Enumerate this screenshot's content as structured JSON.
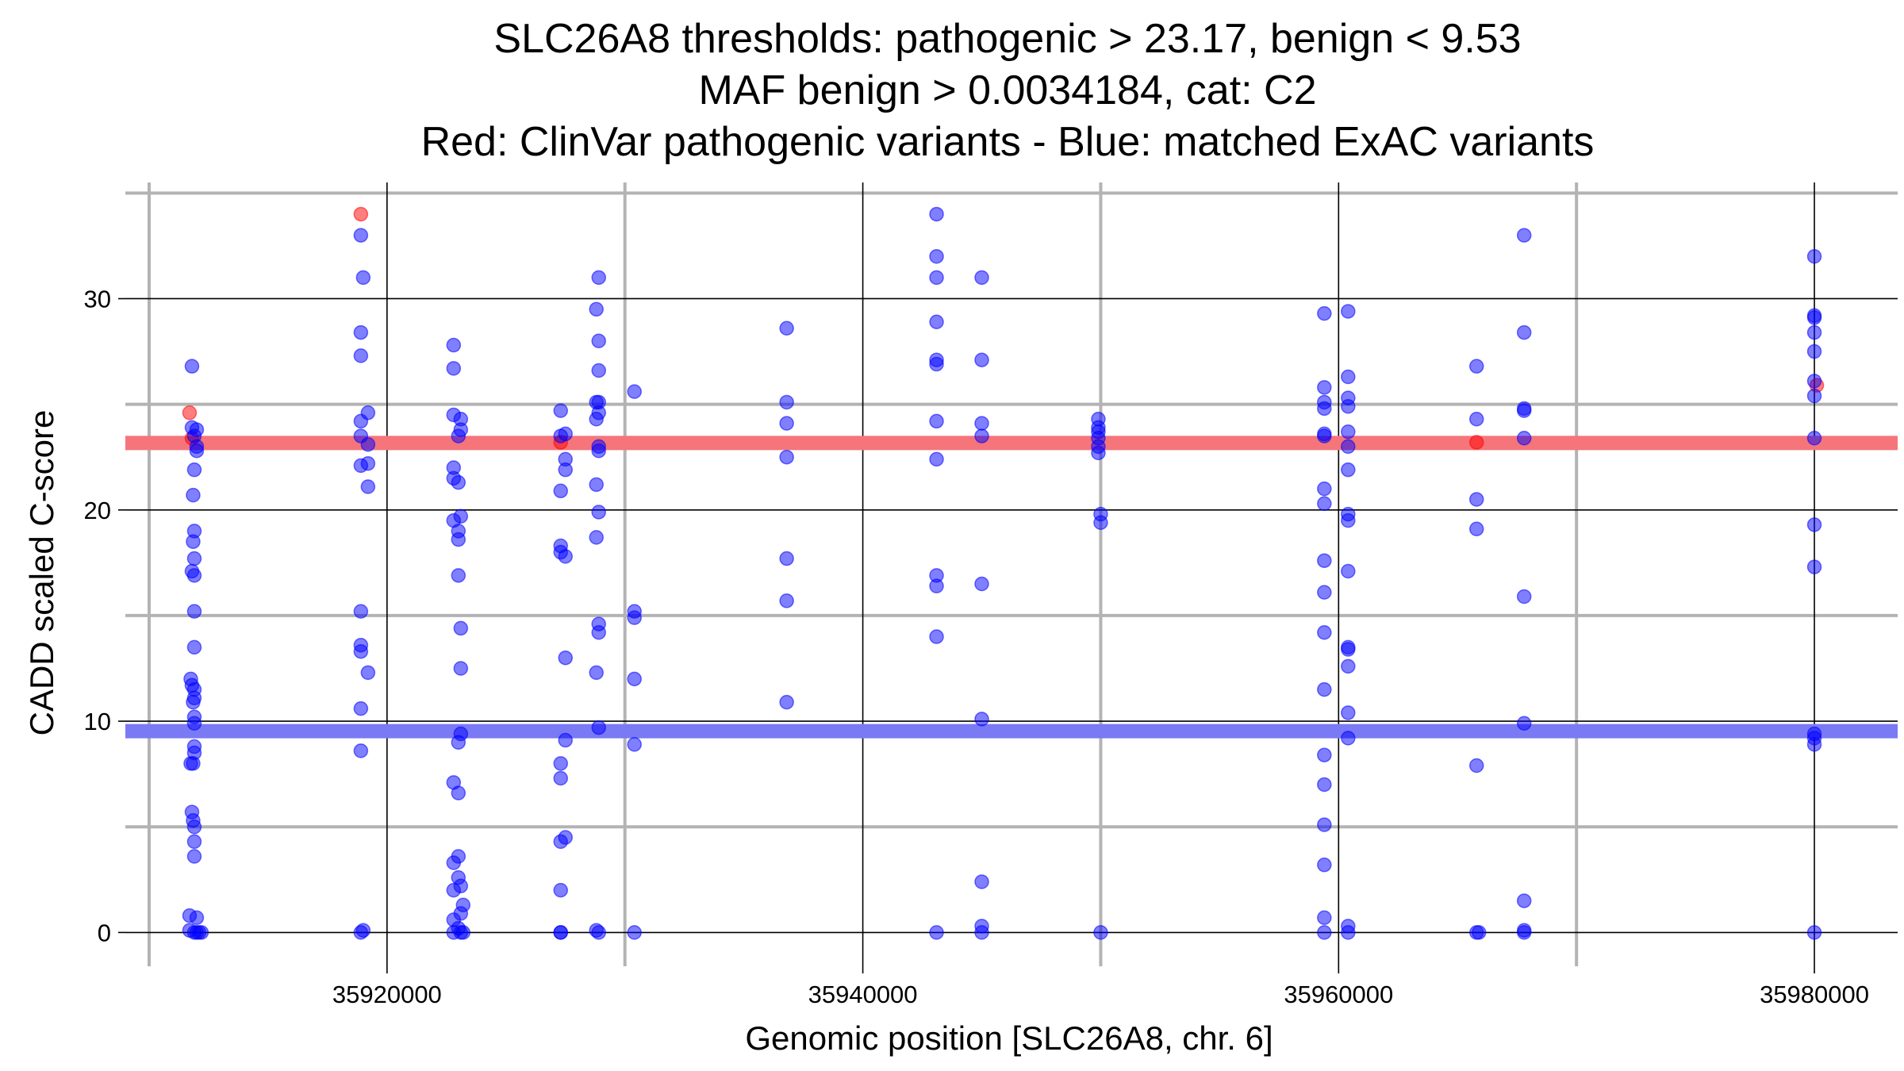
{
  "chart_data": {
    "type": "scatter",
    "title": [
      "SLC26A8 thresholds: pathogenic > 23.17, benign < 9.53",
      "MAF benign > 0.0034184, cat: C2",
      "Red: ClinVar pathogenic variants - Blue: matched ExAC variants"
    ],
    "xlabel": "Genomic position [SLC26A8, chr. 6]",
    "ylabel": "CADD scaled C-score",
    "xlim": [
      35909000,
      35983500
    ],
    "ylim": [
      -1.6,
      35.5
    ],
    "x_ticks": [
      35920000,
      35940000,
      35960000,
      35980000
    ],
    "x_tick_labels": [
      "35920000",
      "35940000",
      "35960000",
      "35980000"
    ],
    "y_ticks": [
      0,
      10,
      20,
      30
    ],
    "y_tick_labels": [
      "0",
      "10",
      "20",
      "30"
    ],
    "x_minor_grid": [
      35910000,
      35930000,
      35950000,
      35970000
    ],
    "y_minor_grid": [
      5,
      15,
      25,
      35
    ],
    "grid": true,
    "thresholds": [
      {
        "name": "pathogenic",
        "y": 23.17,
        "color": "#f5757a"
      },
      {
        "name": "benign",
        "y": 9.53,
        "color": "#7a7af5"
      }
    ],
    "series": [
      {
        "color": "#ff0000",
        "points": [
          [
            35911700,
            24.6
          ],
          [
            35911800,
            23.4
          ],
          [
            35918900,
            34.0
          ],
          [
            35927300,
            23.2
          ],
          [
            35965800,
            23.2
          ],
          [
            35980100,
            25.9
          ]
        ]
      },
      {
        "color": "#0000ff",
        "points": [
          [
            35911700,
            0.8
          ],
          [
            35911700,
            0.1
          ],
          [
            35911750,
            12.0
          ],
          [
            35911750,
            8.0
          ],
          [
            35911800,
            26.8
          ],
          [
            35911800,
            23.9
          ],
          [
            35911800,
            17.1
          ],
          [
            35911800,
            11.7
          ],
          [
            35911800,
            5.7
          ],
          [
            35911850,
            20.7
          ],
          [
            35911850,
            18.5
          ],
          [
            35911850,
            10.9
          ],
          [
            35911850,
            8.0
          ],
          [
            35911850,
            5.3
          ],
          [
            35911900,
            23.5
          ],
          [
            35911900,
            21.9
          ],
          [
            35911900,
            19.0
          ],
          [
            35911900,
            17.7
          ],
          [
            35911900,
            16.9
          ],
          [
            35911900,
            15.2
          ],
          [
            35911900,
            13.5
          ],
          [
            35911900,
            11.5
          ],
          [
            35911900,
            11.1
          ],
          [
            35911900,
            10.2
          ],
          [
            35911900,
            9.9
          ],
          [
            35911900,
            8.8
          ],
          [
            35911900,
            8.5
          ],
          [
            35911900,
            5.0
          ],
          [
            35911900,
            4.3
          ],
          [
            35911900,
            3.6
          ],
          [
            35911900,
            0.0
          ],
          [
            35912000,
            23.8
          ],
          [
            35912000,
            23.0
          ],
          [
            35912000,
            22.8
          ],
          [
            35912000,
            0.7
          ],
          [
            35912000,
            0.0
          ],
          [
            35912100,
            0.0
          ],
          [
            35912200,
            0.0
          ],
          [
            35918900,
            33.0
          ],
          [
            35918900,
            28.4
          ],
          [
            35918900,
            27.3
          ],
          [
            35918900,
            24.2
          ],
          [
            35918900,
            23.5
          ],
          [
            35918900,
            22.1
          ],
          [
            35918900,
            15.2
          ],
          [
            35918900,
            13.6
          ],
          [
            35918900,
            13.3
          ],
          [
            35918900,
            10.6
          ],
          [
            35918900,
            8.6
          ],
          [
            35918900,
            0.0
          ],
          [
            35919000,
            31.0
          ],
          [
            35919000,
            0.1
          ],
          [
            35919200,
            24.6
          ],
          [
            35919200,
            23.1
          ],
          [
            35919200,
            22.2
          ],
          [
            35919200,
            21.1
          ],
          [
            35919200,
            12.3
          ],
          [
            35922800,
            27.8
          ],
          [
            35922800,
            26.7
          ],
          [
            35922800,
            24.5
          ],
          [
            35922800,
            22.0
          ],
          [
            35922800,
            21.5
          ],
          [
            35922800,
            19.5
          ],
          [
            35922800,
            7.1
          ],
          [
            35922800,
            3.3
          ],
          [
            35922800,
            2.0
          ],
          [
            35922800,
            0.6
          ],
          [
            35922800,
            0.0
          ],
          [
            35923000,
            23.5
          ],
          [
            35923000,
            21.3
          ],
          [
            35923000,
            19.0
          ],
          [
            35923000,
            18.6
          ],
          [
            35923000,
            16.9
          ],
          [
            35923000,
            9.0
          ],
          [
            35923000,
            6.6
          ],
          [
            35923000,
            3.6
          ],
          [
            35923000,
            2.6
          ],
          [
            35923000,
            0.2
          ],
          [
            35923100,
            24.3
          ],
          [
            35923100,
            23.8
          ],
          [
            35923100,
            19.7
          ],
          [
            35923100,
            14.4
          ],
          [
            35923100,
            12.5
          ],
          [
            35923100,
            9.4
          ],
          [
            35923100,
            2.2
          ],
          [
            35923100,
            0.9
          ],
          [
            35923100,
            0.0
          ],
          [
            35923200,
            1.3
          ],
          [
            35923200,
            0.0
          ],
          [
            35927300,
            24.7
          ],
          [
            35927300,
            23.5
          ],
          [
            35927300,
            20.9
          ],
          [
            35927300,
            18.3
          ],
          [
            35927300,
            18.0
          ],
          [
            35927300,
            8.0
          ],
          [
            35927300,
            7.3
          ],
          [
            35927300,
            4.3
          ],
          [
            35927300,
            2.0
          ],
          [
            35927300,
            0.0
          ],
          [
            35927500,
            23.6
          ],
          [
            35927500,
            22.4
          ],
          [
            35927500,
            21.9
          ],
          [
            35927500,
            17.8
          ],
          [
            35927500,
            13.0
          ],
          [
            35927500,
            9.1
          ],
          [
            35927500,
            4.5
          ],
          [
            35927300,
            0.0
          ],
          [
            35928800,
            29.5
          ],
          [
            35928800,
            25.1
          ],
          [
            35928800,
            24.3
          ],
          [
            35928800,
            21.2
          ],
          [
            35928800,
            18.7
          ],
          [
            35928800,
            12.3
          ],
          [
            35928800,
            0.1
          ],
          [
            35928900,
            31.0
          ],
          [
            35928900,
            28.0
          ],
          [
            35928900,
            26.6
          ],
          [
            35928900,
            25.1
          ],
          [
            35928900,
            24.6
          ],
          [
            35928900,
            23.0
          ],
          [
            35928900,
            22.8
          ],
          [
            35928900,
            19.9
          ],
          [
            35928900,
            14.6
          ],
          [
            35928900,
            14.2
          ],
          [
            35928900,
            9.7
          ],
          [
            35928900,
            0.0
          ],
          [
            35930400,
            25.6
          ],
          [
            35930400,
            15.2
          ],
          [
            35930400,
            14.9
          ],
          [
            35930400,
            12.0
          ],
          [
            35930400,
            8.9
          ],
          [
            35930400,
            0.0
          ],
          [
            35936800,
            28.6
          ],
          [
            35936800,
            25.1
          ],
          [
            35936800,
            24.1
          ],
          [
            35936800,
            22.5
          ],
          [
            35936800,
            17.7
          ],
          [
            35936800,
            15.7
          ],
          [
            35936800,
            10.9
          ],
          [
            35943100,
            34.0
          ],
          [
            35943100,
            32.0
          ],
          [
            35943100,
            31.0
          ],
          [
            35943100,
            28.9
          ],
          [
            35943100,
            27.1
          ],
          [
            35943100,
            26.9
          ],
          [
            35943100,
            24.2
          ],
          [
            35943100,
            22.4
          ],
          [
            35943100,
            16.9
          ],
          [
            35943100,
            16.4
          ],
          [
            35943100,
            14.0
          ],
          [
            35943100,
            0.0
          ],
          [
            35945000,
            31.0
          ],
          [
            35945000,
            27.1
          ],
          [
            35945000,
            24.1
          ],
          [
            35945000,
            23.5
          ],
          [
            35945000,
            16.5
          ],
          [
            35945000,
            10.1
          ],
          [
            35945000,
            2.4
          ],
          [
            35945000,
            0.3
          ],
          [
            35945000,
            0.0
          ],
          [
            35949900,
            24.3
          ],
          [
            35949900,
            23.9
          ],
          [
            35949900,
            23.7
          ],
          [
            35949900,
            23.4
          ],
          [
            35949900,
            23.0
          ],
          [
            35949900,
            22.7
          ],
          [
            35950000,
            19.8
          ],
          [
            35950000,
            19.4
          ],
          [
            35950000,
            0.0
          ],
          [
            35959400,
            29.3
          ],
          [
            35959400,
            25.8
          ],
          [
            35959400,
            25.1
          ],
          [
            35959400,
            24.8
          ],
          [
            35959400,
            23.6
          ],
          [
            35959400,
            23.5
          ],
          [
            35959400,
            21.0
          ],
          [
            35959400,
            20.3
          ],
          [
            35959400,
            17.6
          ],
          [
            35959400,
            16.1
          ],
          [
            35959400,
            14.2
          ],
          [
            35959400,
            11.5
          ],
          [
            35959400,
            8.4
          ],
          [
            35959400,
            7.0
          ],
          [
            35959400,
            5.1
          ],
          [
            35959400,
            3.2
          ],
          [
            35959400,
            0.7
          ],
          [
            35959400,
            0.0
          ],
          [
            35960400,
            29.4
          ],
          [
            35960400,
            26.3
          ],
          [
            35960400,
            25.3
          ],
          [
            35960400,
            24.9
          ],
          [
            35960400,
            23.7
          ],
          [
            35960400,
            23.0
          ],
          [
            35960400,
            21.9
          ],
          [
            35960400,
            19.8
          ],
          [
            35960400,
            19.5
          ],
          [
            35960400,
            17.1
          ],
          [
            35960400,
            13.5
          ],
          [
            35960400,
            13.4
          ],
          [
            35960400,
            12.6
          ],
          [
            35960400,
            10.4
          ],
          [
            35960400,
            9.2
          ],
          [
            35960400,
            0.3
          ],
          [
            35960400,
            0.0
          ],
          [
            35965800,
            26.8
          ],
          [
            35965800,
            24.3
          ],
          [
            35965800,
            20.5
          ],
          [
            35965800,
            19.1
          ],
          [
            35965800,
            7.9
          ],
          [
            35965800,
            0.0
          ],
          [
            35965900,
            0.0
          ],
          [
            35967800,
            33.0
          ],
          [
            35967800,
            28.4
          ],
          [
            35967800,
            24.8
          ],
          [
            35967800,
            24.7
          ],
          [
            35967800,
            23.4
          ],
          [
            35967800,
            15.9
          ],
          [
            35967800,
            9.9
          ],
          [
            35967800,
            1.5
          ],
          [
            35967800,
            0.1
          ],
          [
            35967800,
            0.0
          ],
          [
            35980000,
            32.0
          ],
          [
            35980000,
            29.2
          ],
          [
            35980000,
            29.1
          ],
          [
            35980000,
            28.4
          ],
          [
            35980000,
            27.5
          ],
          [
            35980000,
            26.1
          ],
          [
            35980000,
            25.4
          ],
          [
            35980000,
            23.4
          ],
          [
            35980000,
            19.3
          ],
          [
            35980000,
            17.3
          ],
          [
            35980000,
            9.4
          ],
          [
            35980000,
            9.2
          ],
          [
            35980000,
            8.9
          ],
          [
            35980000,
            0.0
          ]
        ]
      }
    ]
  }
}
